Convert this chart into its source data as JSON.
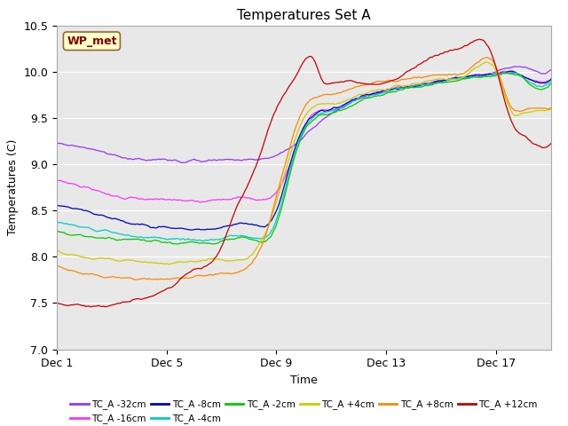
{
  "title": "Temperatures Set A",
  "xlabel": "Time",
  "ylabel": "Temperatures (C)",
  "ylim": [
    7.0,
    10.5
  ],
  "xlim": [
    0,
    18
  ],
  "xtick_positions": [
    0,
    4,
    8,
    12,
    16
  ],
  "xtick_labels": [
    "Dec 1",
    "Dec 5",
    "Dec 9",
    "Dec 13",
    "Dec 17"
  ],
  "ytick_positions": [
    7.0,
    7.5,
    8.0,
    8.5,
    9.0,
    9.5,
    10.0,
    10.5
  ],
  "annotation_text": "WP_met",
  "annotation_color": "#8B0000",
  "annotation_bg": "#FFFFCC",
  "series": [
    {
      "label": "TC_A -32cm",
      "color": "#9933FF",
      "keypoints": [
        [
          0,
          9.22
        ],
        [
          1,
          9.18
        ],
        [
          3,
          9.05
        ],
        [
          4,
          9.05
        ],
        [
          5,
          9.03
        ],
        [
          6,
          9.05
        ],
        [
          7,
          9.05
        ],
        [
          8,
          9.1
        ],
        [
          9,
          9.3
        ],
        [
          10,
          9.55
        ],
        [
          11,
          9.7
        ],
        [
          12,
          9.8
        ],
        [
          13,
          9.85
        ],
        [
          14,
          9.9
        ],
        [
          15,
          9.95
        ],
        [
          16,
          10.0
        ],
        [
          16.5,
          10.05
        ],
        [
          17,
          10.05
        ],
        [
          17.5,
          10.0
        ],
        [
          18,
          10.02
        ]
      ]
    },
    {
      "label": "TC_A -16cm",
      "color": "#FF33FF",
      "keypoints": [
        [
          0,
          8.82
        ],
        [
          1,
          8.75
        ],
        [
          3,
          8.62
        ],
        [
          4,
          8.62
        ],
        [
          5,
          8.6
        ],
        [
          6,
          8.62
        ],
        [
          7,
          8.63
        ],
        [
          8,
          8.7
        ],
        [
          8.5,
          9.0
        ],
        [
          9,
          9.4
        ],
        [
          10,
          9.6
        ],
        [
          11,
          9.72
        ],
        [
          12,
          9.8
        ],
        [
          13,
          9.85
        ],
        [
          14,
          9.9
        ],
        [
          15,
          9.95
        ],
        [
          16,
          9.98
        ],
        [
          16.5,
          10.0
        ],
        [
          17,
          9.95
        ],
        [
          17.5,
          9.9
        ],
        [
          18,
          9.92
        ]
      ]
    },
    {
      "label": "TC_A -8cm",
      "color": "#0000CC",
      "keypoints": [
        [
          0,
          8.56
        ],
        [
          1,
          8.5
        ],
        [
          3,
          8.35
        ],
        [
          4,
          8.32
        ],
        [
          5,
          8.3
        ],
        [
          6,
          8.32
        ],
        [
          7,
          8.35
        ],
        [
          8,
          8.5
        ],
        [
          8.5,
          9.0
        ],
        [
          9,
          9.4
        ],
        [
          10,
          9.6
        ],
        [
          11,
          9.72
        ],
        [
          12,
          9.8
        ],
        [
          13,
          9.85
        ],
        [
          14,
          9.9
        ],
        [
          15,
          9.95
        ],
        [
          16,
          9.98
        ],
        [
          16.5,
          10.0
        ],
        [
          17,
          9.95
        ],
        [
          17.5,
          9.88
        ],
        [
          18,
          9.92
        ]
      ]
    },
    {
      "label": "TC_A -4cm",
      "color": "#00CCCC",
      "keypoints": [
        [
          0,
          8.38
        ],
        [
          1,
          8.32
        ],
        [
          3,
          8.22
        ],
        [
          4,
          8.2
        ],
        [
          5,
          8.18
        ],
        [
          6,
          8.2
        ],
        [
          7,
          8.22
        ],
        [
          8,
          8.4
        ],
        [
          8.5,
          8.95
        ],
        [
          9,
          9.38
        ],
        [
          10,
          9.58
        ],
        [
          11,
          9.7
        ],
        [
          12,
          9.78
        ],
        [
          13,
          9.84
        ],
        [
          14,
          9.89
        ],
        [
          15,
          9.94
        ],
        [
          16,
          9.97
        ],
        [
          16.5,
          9.99
        ],
        [
          17,
          9.93
        ],
        [
          17.5,
          9.85
        ],
        [
          18,
          9.9
        ]
      ]
    },
    {
      "label": "TC_A -2cm",
      "color": "#00CC00",
      "keypoints": [
        [
          0,
          8.28
        ],
        [
          1,
          8.22
        ],
        [
          3,
          8.18
        ],
        [
          4,
          8.16
        ],
        [
          5,
          8.15
        ],
        [
          6,
          8.17
        ],
        [
          7,
          8.2
        ],
        [
          8,
          8.35
        ],
        [
          8.5,
          8.9
        ],
        [
          9,
          9.35
        ],
        [
          10,
          9.55
        ],
        [
          11,
          9.68
        ],
        [
          12,
          9.77
        ],
        [
          13,
          9.83
        ],
        [
          14,
          9.88
        ],
        [
          15,
          9.93
        ],
        [
          16,
          9.96
        ],
        [
          16.5,
          9.98
        ],
        [
          17,
          9.92
        ],
        [
          17.5,
          9.82
        ],
        [
          18,
          9.88
        ]
      ]
    },
    {
      "label": "TC_A +4cm",
      "color": "#CCCC00",
      "keypoints": [
        [
          0,
          8.07
        ],
        [
          1,
          8.0
        ],
        [
          2,
          7.97
        ],
        [
          3,
          7.95
        ],
        [
          4,
          7.93
        ],
        [
          5,
          7.95
        ],
        [
          6,
          7.97
        ],
        [
          7,
          8.0
        ],
        [
          7.5,
          8.2
        ],
        [
          8,
          8.6
        ],
        [
          8.5,
          9.1
        ],
        [
          9,
          9.5
        ],
        [
          10,
          9.65
        ],
        [
          11,
          9.75
        ],
        [
          12,
          9.82
        ],
        [
          13,
          9.87
        ],
        [
          14,
          9.92
        ],
        [
          15,
          9.97
        ],
        [
          16,
          10.0
        ],
        [
          16.5,
          9.6
        ],
        [
          17,
          9.55
        ],
        [
          17.5,
          9.58
        ],
        [
          18,
          9.6
        ]
      ]
    },
    {
      "label": "TC_A +8cm",
      "color": "#FF8800",
      "keypoints": [
        [
          0,
          7.9
        ],
        [
          1,
          7.82
        ],
        [
          2,
          7.78
        ],
        [
          3,
          7.76
        ],
        [
          4,
          7.76
        ],
        [
          5,
          7.78
        ],
        [
          6,
          7.82
        ],
        [
          7,
          7.9
        ],
        [
          7.5,
          8.15
        ],
        [
          8,
          8.65
        ],
        [
          8.5,
          9.2
        ],
        [
          9,
          9.6
        ],
        [
          10,
          9.75
        ],
        [
          11,
          9.85
        ],
        [
          12,
          9.9
        ],
        [
          13,
          9.93
        ],
        [
          14,
          9.97
        ],
        [
          15,
          10.02
        ],
        [
          16,
          10.05
        ],
        [
          16.5,
          9.65
        ],
        [
          17,
          9.58
        ],
        [
          17.5,
          9.6
        ],
        [
          18,
          9.62
        ]
      ]
    },
    {
      "label": "TC_A +12cm",
      "color": "#CC0000",
      "keypoints": [
        [
          0,
          7.5
        ],
        [
          1,
          7.47
        ],
        [
          2,
          7.48
        ],
        [
          3,
          7.55
        ],
        [
          4,
          7.65
        ],
        [
          5,
          7.85
        ],
        [
          6,
          8.1
        ],
        [
          6.5,
          8.5
        ],
        [
          7,
          8.8
        ],
        [
          7.5,
          9.2
        ],
        [
          8,
          9.6
        ],
        [
          8.5,
          9.85
        ],
        [
          9,
          10.1
        ],
        [
          9.3,
          10.15
        ],
        [
          9.7,
          9.9
        ],
        [
          10,
          9.88
        ],
        [
          11,
          9.88
        ],
        [
          12,
          9.88
        ],
        [
          13,
          10.05
        ],
        [
          14,
          10.2
        ],
        [
          15,
          10.3
        ],
        [
          15.5,
          10.35
        ],
        [
          16,
          10.05
        ],
        [
          16.5,
          9.5
        ],
        [
          17,
          9.3
        ],
        [
          17.5,
          9.2
        ],
        [
          18,
          9.22
        ]
      ]
    }
  ],
  "background_color": "#FFFFFF",
  "plot_bg_color": "#E8E8E8",
  "grid_color": "#FFFFFF",
  "n_points": 500
}
